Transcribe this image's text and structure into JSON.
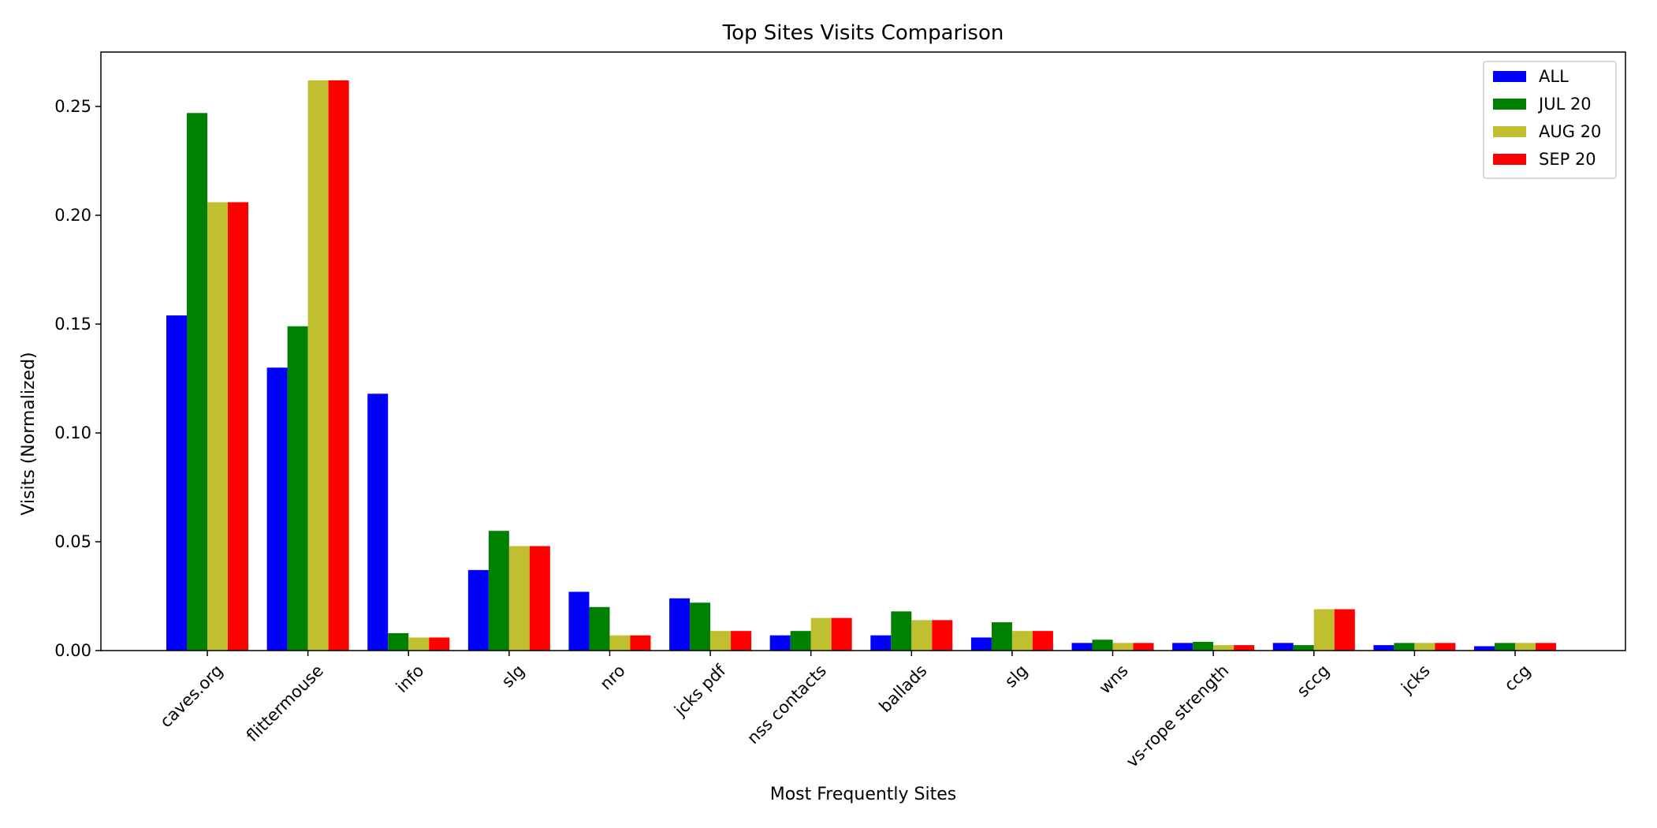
{
  "chart_data": {
    "type": "bar",
    "title": "Top Sites Visits Comparison",
    "xlabel": "Most Frequently Sites",
    "ylabel": "Visits (Normalized)",
    "categories": [
      "caves.org",
      "flittermouse",
      "info",
      "slg",
      "nro",
      "jcks pdf",
      "nss contacts",
      "ballads",
      "slg",
      "wns",
      "vs-rope strength",
      "sccg",
      "jcks",
      "ccg"
    ],
    "series": [
      {
        "name": "ALL",
        "color": "#0000ff",
        "values": [
          0.154,
          0.13,
          0.118,
          0.037,
          0.027,
          0.024,
          0.007,
          0.007,
          0.006,
          0.0035,
          0.0035,
          0.0035,
          0.0025,
          0.002
        ]
      },
      {
        "name": "JUL 20",
        "color": "#008000",
        "values": [
          0.247,
          0.149,
          0.008,
          0.055,
          0.02,
          0.022,
          0.009,
          0.018,
          0.013,
          0.005,
          0.004,
          0.0025,
          0.0035,
          0.0035
        ]
      },
      {
        "name": "AUG 20",
        "color": "#bfbf30",
        "values": [
          0.206,
          0.262,
          0.006,
          0.048,
          0.007,
          0.009,
          0.015,
          0.014,
          0.009,
          0.0035,
          0.0025,
          0.019,
          0.0035,
          0.0035
        ]
      },
      {
        "name": "SEP 20",
        "color": "#ff0000",
        "values": [
          0.206,
          0.262,
          0.006,
          0.048,
          0.007,
          0.009,
          0.015,
          0.014,
          0.009,
          0.0035,
          0.0025,
          0.019,
          0.0035,
          0.0035
        ]
      }
    ],
    "ylim": [
      0,
      0.275
    ],
    "yticks": [
      "0.00",
      "0.05",
      "0.10",
      "0.15",
      "0.20",
      "0.25"
    ],
    "grid": false,
    "legend_position": "top-right"
  }
}
